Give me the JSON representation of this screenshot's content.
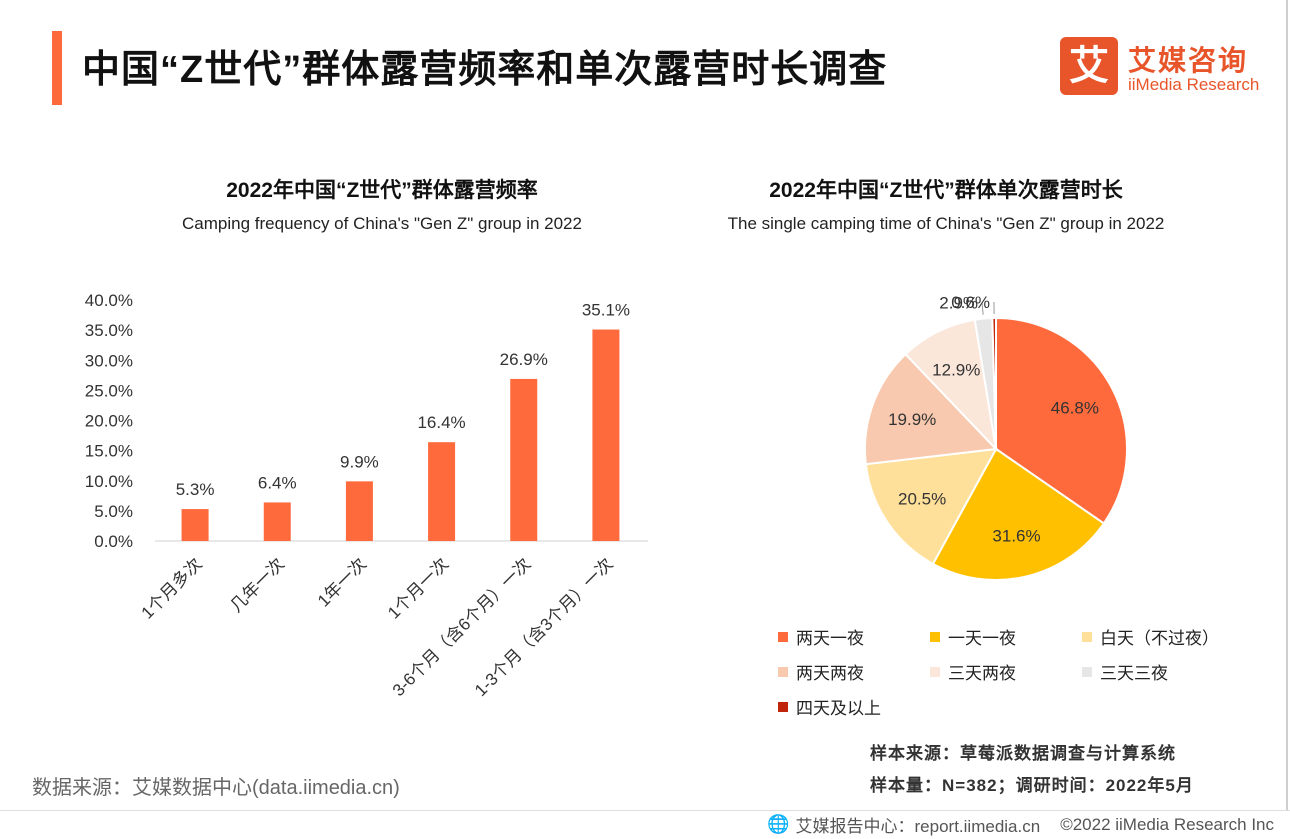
{
  "page": {
    "title": "中国“Z世代”群体露营频率和单次露营时长调查",
    "logo_mark": "艾",
    "logo_cn": "艾媒咨询",
    "logo_en": "iiMedia Research",
    "source": "数据来源：艾媒数据中心(data.iimedia.cn)",
    "sample_source": "样本来源：草莓派数据调查与计算系统",
    "sample_size": "样本量：N=382；调研时间：2022年5月",
    "footer_site": "艾媒报告中心：report.iimedia.cn",
    "footer_copyright": "©2022  iiMedia Research  Inc",
    "footer_icon": "globe-icon"
  },
  "colors": {
    "accent": "#ff6a3d",
    "bar": "#ff6a3d",
    "brand": "#e8552a"
  },
  "chart_data": [
    {
      "type": "bar",
      "title": "2022年中国“Z世代”群体露营频率",
      "subtitle": "Camping frequency of China's \"Gen Z\" group in 2022",
      "categories": [
        "1个月多次",
        "几年一次",
        "1年一次",
        "1个月一次",
        "3-6个月（含6个月）一次",
        "1-3个月（含3个月）一次"
      ],
      "values": [
        5.3,
        6.4,
        9.9,
        16.4,
        26.9,
        35.1
      ],
      "value_labels": [
        "5.3%",
        "6.4%",
        "9.9%",
        "16.4%",
        "26.9%",
        "35.1%"
      ],
      "yticks": [
        "0.0%",
        "5.0%",
        "10.0%",
        "15.0%",
        "20.0%",
        "25.0%",
        "30.0%",
        "35.0%",
        "40.0%"
      ],
      "ylim": [
        0,
        40
      ],
      "grid": false,
      "color": "#ff6a3d"
    },
    {
      "type": "pie",
      "title": "2022年中国“Z世代”群体单次露营时长",
      "subtitle": "The single camping time of China's \"Gen Z\" group in 2022",
      "legend_position": "bottom",
      "slices": [
        {
          "label": "两天一夜",
          "value": 46.8,
          "value_label": "46.8%",
          "color": "#ff6a3d"
        },
        {
          "label": "一天一夜",
          "value": 31.6,
          "value_label": "31.6%",
          "color": "#ffc000"
        },
        {
          "label": "白天（不过夜）",
          "value": 20.5,
          "value_label": "20.5%",
          "color": "#ffe09a"
        },
        {
          "label": "两天两夜",
          "value": 19.9,
          "value_label": "19.9%",
          "color": "#f8c9ae"
        },
        {
          "label": "三天两夜",
          "value": 12.9,
          "value_label": "12.9%",
          "color": "#fbe6da"
        },
        {
          "label": "三天三夜",
          "value": 2.9,
          "value_label": "2.9%",
          "color": "#e6e6e6"
        },
        {
          "label": "四天及以上",
          "value": 0.6,
          "value_label": "0.6%",
          "color": "#c0260c"
        }
      ]
    }
  ]
}
